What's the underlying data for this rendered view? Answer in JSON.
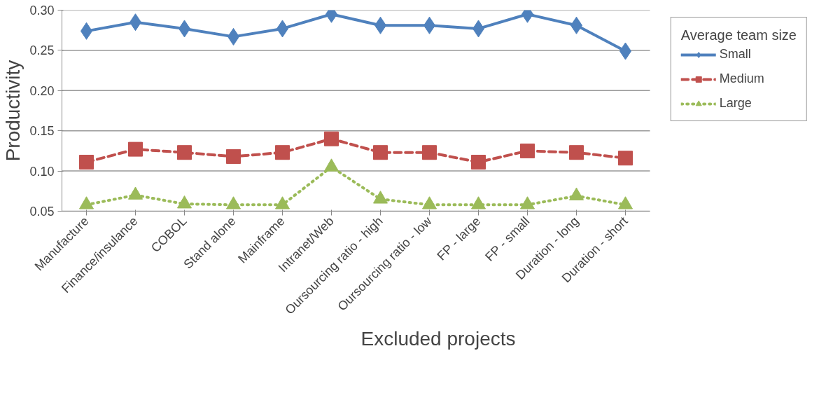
{
  "chart_data": {
    "type": "line",
    "xlabel": "Excluded projects",
    "ylabel": "Productivity",
    "legend_title": "Average team size",
    "categories": [
      "Manufacture",
      "Finance/insulance",
      "COBOL",
      "Stand alone",
      "Mainframe",
      "Intranet/Web",
      "Oursourcing ratio - high",
      "Oursourcing ratio - low",
      "FP - large",
      "FP - small",
      "Duration - long",
      "Duration - short"
    ],
    "series": [
      {
        "name": "Small",
        "color": "#4f81bd",
        "marker": "diamond",
        "line_style": "solid",
        "values": [
          0.274,
          0.285,
          0.277,
          0.267,
          0.277,
          0.295,
          0.281,
          0.281,
          0.277,
          0.295,
          0.281,
          0.249
        ]
      },
      {
        "name": "Medium",
        "color": "#c0504d",
        "marker": "square",
        "line_style": "dashed",
        "values": [
          0.111,
          0.127,
          0.123,
          0.118,
          0.123,
          0.14,
          0.123,
          0.123,
          0.111,
          0.125,
          0.123,
          0.116
        ]
      },
      {
        "name": "Large",
        "color": "#9bbb59",
        "marker": "triangle",
        "line_style": "dotted",
        "values": [
          0.058,
          0.07,
          0.059,
          0.058,
          0.058,
          0.105,
          0.065,
          0.058,
          0.058,
          0.058,
          0.069,
          0.058
        ]
      }
    ],
    "ylim": [
      0.05,
      0.3
    ],
    "yticks": [
      {
        "value": 0.05,
        "label": "0.05"
      },
      {
        "value": 0.1,
        "label": "0.10"
      },
      {
        "value": 0.15,
        "label": "0.15"
      },
      {
        "value": 0.2,
        "label": "0.20"
      },
      {
        "value": 0.25,
        "label": "0.25"
      },
      {
        "value": 0.3,
        "label": "0.30"
      }
    ],
    "grid": "y",
    "legend": "right"
  }
}
